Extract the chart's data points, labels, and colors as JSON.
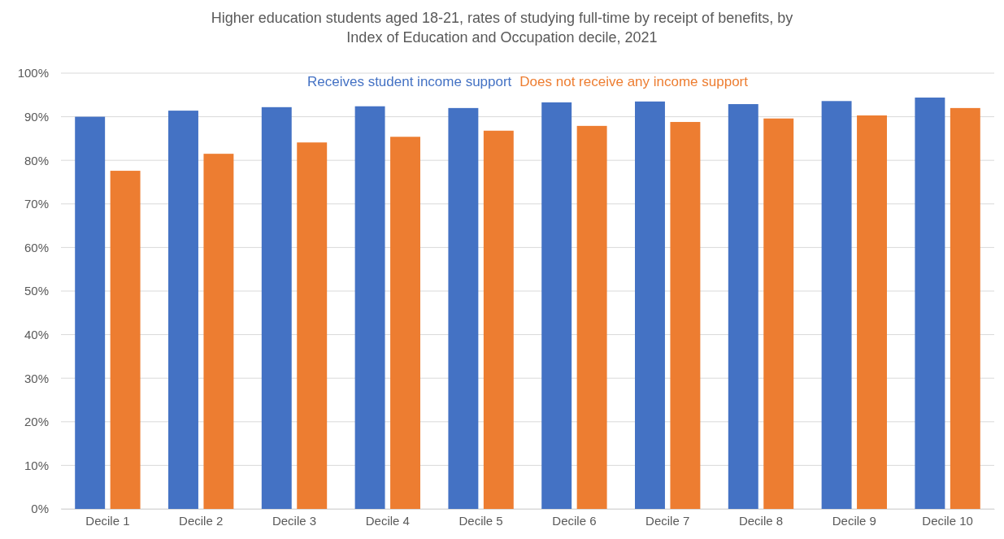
{
  "chart_data": {
    "type": "bar",
    "title": "Higher education students aged 18-21, rates of studying full-time by receipt of benefits, by Index of Education and Occupation decile, 2021",
    "categories": [
      "Decile 1",
      "Decile 2",
      "Decile 3",
      "Decile 4",
      "Decile 5",
      "Decile 6",
      "Decile 7",
      "Decile 8",
      "Decile 9",
      "Decile 10"
    ],
    "series": [
      {
        "name": "Receives student income support",
        "color": "#4472c4",
        "values": [
          90.0,
          91.4,
          92.2,
          92.4,
          92.0,
          93.3,
          93.5,
          92.9,
          93.6,
          94.4
        ]
      },
      {
        "name": "Does not receive any income support",
        "color": "#ed7d31",
        "values": [
          77.6,
          81.5,
          84.1,
          85.4,
          86.8,
          87.9,
          88.8,
          89.6,
          90.3,
          92.0
        ]
      }
    ],
    "ylim": [
      0,
      100
    ],
    "yticks": [
      {
        "value": 0,
        "label": "0%"
      },
      {
        "value": 10,
        "label": "10%"
      },
      {
        "value": 20,
        "label": "20%"
      },
      {
        "value": 30,
        "label": "30%"
      },
      {
        "value": 40,
        "label": "40%"
      },
      {
        "value": 50,
        "label": "50%"
      },
      {
        "value": 60,
        "label": "60%"
      },
      {
        "value": 70,
        "label": "70%"
      },
      {
        "value": 80,
        "label": "80%"
      },
      {
        "value": 90,
        "label": "90%"
      },
      {
        "value": 100,
        "label": "100%"
      }
    ],
    "grid": "y",
    "legend": "top"
  }
}
